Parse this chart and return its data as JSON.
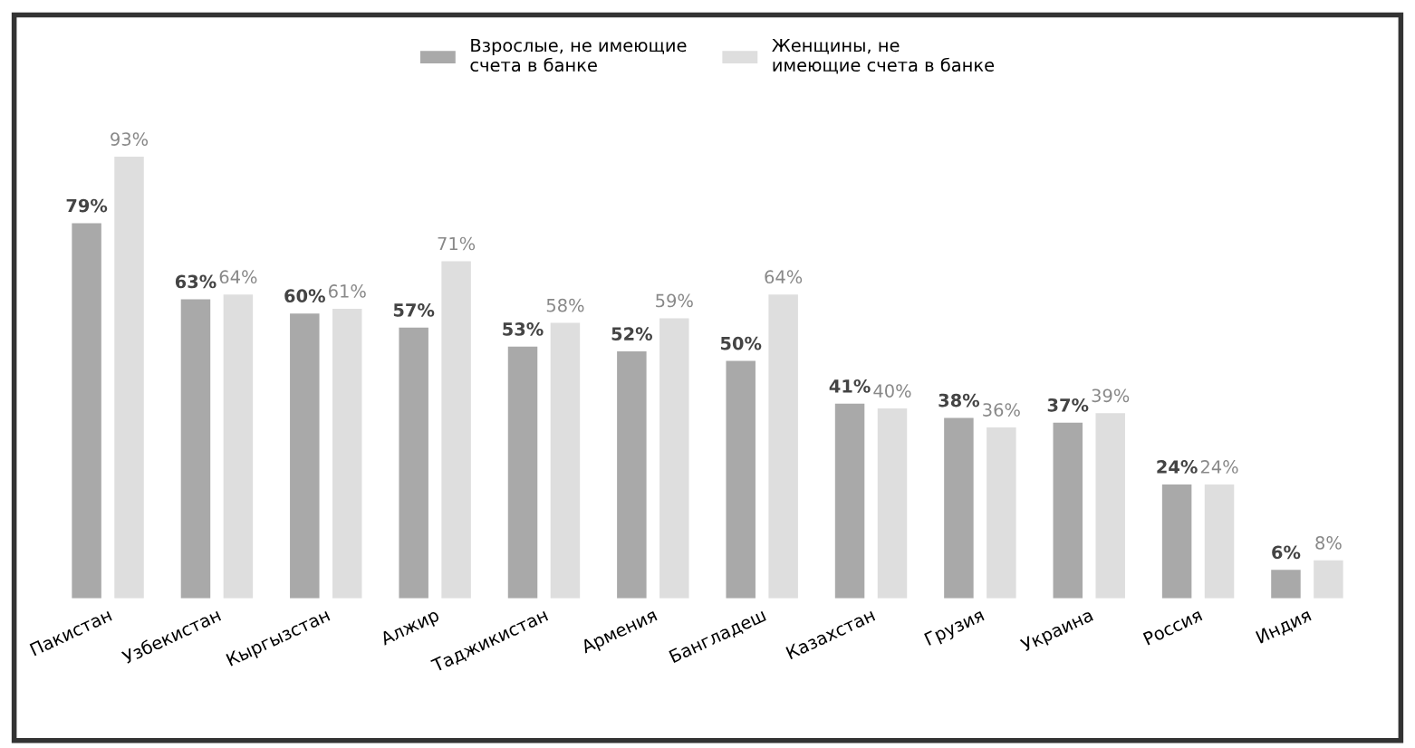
{
  "chart_data": {
    "type": "bar",
    "categories": [
      "Пакистан",
      "Узбекистан",
      "Кыргызстан",
      "Алжир",
      "Таджикистан",
      "Армения",
      "Бангладеш",
      "Казахстан",
      "Грузия",
      "Украина",
      "Россия",
      "Индия"
    ],
    "series": [
      {
        "name": "Взрослые, не имеющие\nсчета в банке",
        "color": "#a9a9a9",
        "values": [
          79,
          63,
          60,
          57,
          53,
          52,
          50,
          41,
          38,
          37,
          24,
          6
        ],
        "value_labels": [
          "79%",
          "63%",
          "60%",
          "57%",
          "53%",
          "52%",
          "50%",
          "41%",
          "38%",
          "37%",
          "24%",
          "6%"
        ]
      },
      {
        "name": "Женщины, не\nимеющие счета в банке",
        "color": "#dedede",
        "values": [
          93,
          64,
          61,
          71,
          58,
          59,
          64,
          40,
          36,
          39,
          24,
          8
        ],
        "value_labels": [
          "93%",
          "64%",
          "61%",
          "71%",
          "58%",
          "59%",
          "64%",
          "40%",
          "36%",
          "39%",
          "24%",
          "8%"
        ]
      }
    ],
    "legend": "top",
    "grid": false
  }
}
